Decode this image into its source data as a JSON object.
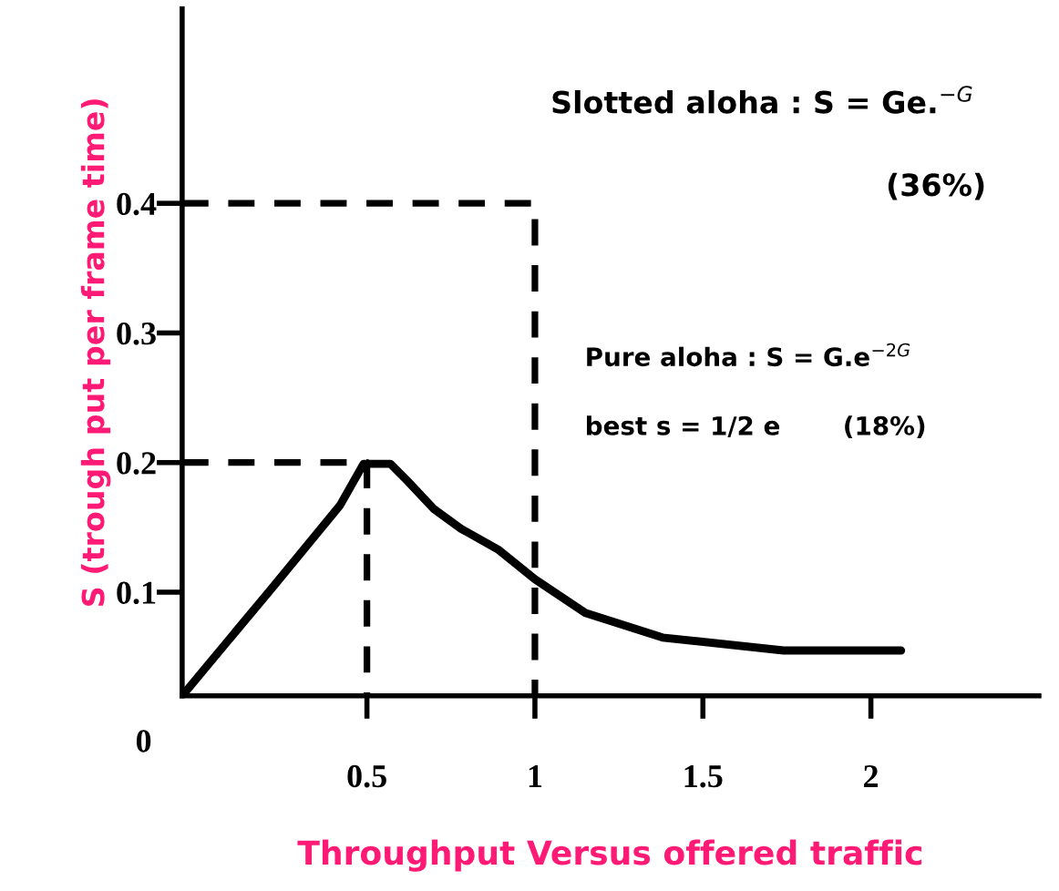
{
  "chart_data": {
    "type": "line",
    "xlabel": "Throughput Versus offered traffic",
    "ylabel": "S (trough put per frame time)",
    "xlim": [
      -0.05,
      2.5
    ],
    "ylim": [
      0.02,
      0.55
    ],
    "xticks": [
      0.5,
      1,
      1.5,
      2
    ],
    "yticks": [
      0.1,
      0.2,
      0.3,
      0.4
    ],
    "grid": false,
    "legend": false,
    "marker": "none",
    "series": [
      {
        "color": "#000000",
        "line_style": "solid",
        "x": [
          -0.05,
          0.22,
          0.42,
          0.49,
          0.57,
          0.62,
          0.7,
          0.78,
          0.89,
          1.0,
          1.15,
          1.38,
          1.74,
          2.09
        ],
        "values": [
          0.02,
          0.104,
          0.167,
          0.199,
          0.199,
          0.186,
          0.164,
          0.149,
          0.133,
          0.11,
          0.084,
          0.065,
          0.055,
          0.055
        ]
      },
      {
        "color": "#000000",
        "line_style": "dashed",
        "x": [
          -0.05,
          1.0,
          1.0
        ],
        "values": [
          0.4,
          0.4,
          0.02
        ]
      },
      {
        "color": "#000000",
        "line_style": "dashed",
        "x": [
          -0.05,
          0.5,
          0.5
        ],
        "values": [
          0.2,
          0.2,
          0.02
        ]
      }
    ],
    "annotations": [
      "Slotted aloha : S = Ge.$^{−G}$",
      "(36%)",
      "Pure aloha : S = G.e$^{−2G}$",
      "best s = 1/2 e",
      "(18%)",
      "0"
    ]
  }
}
